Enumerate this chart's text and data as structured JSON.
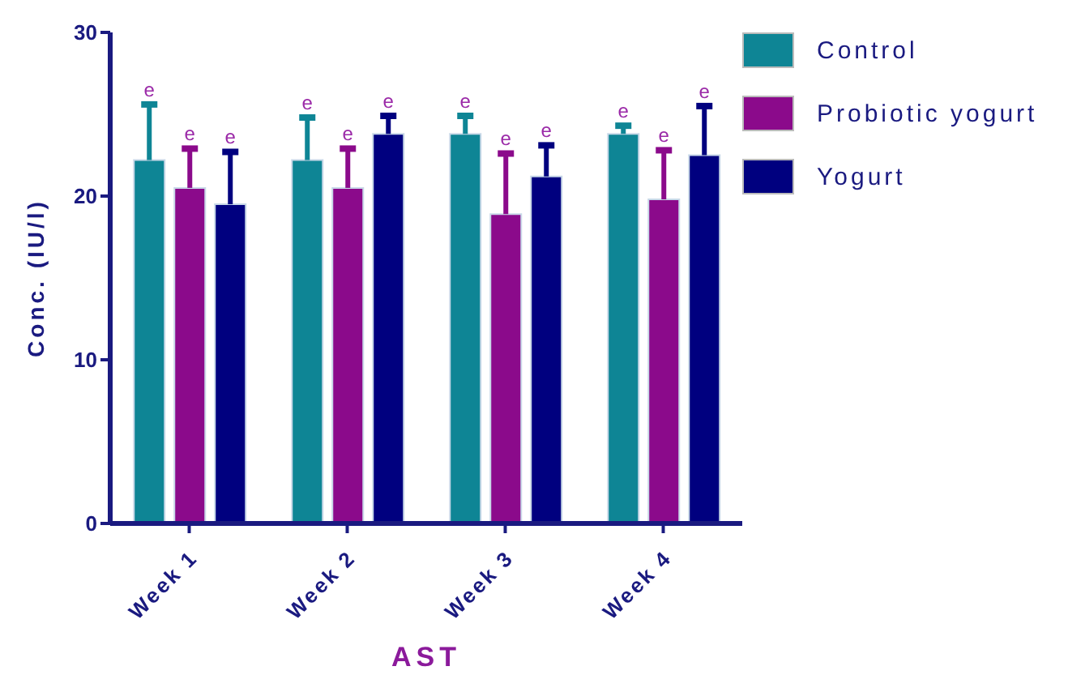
{
  "chart_data": {
    "type": "bar",
    "xlabel": "AST",
    "ylabel": "Conc. (IU/l)",
    "categories": [
      "Week 1",
      "Week 2",
      "Week 3",
      "Week 4"
    ],
    "series": [
      {
        "name": "Control",
        "color": "#0e8595",
        "values": [
          22.2,
          22.2,
          23.8,
          23.8
        ],
        "errors": [
          [
            22.2,
            25.6
          ],
          [
            22.2,
            24.8
          ],
          [
            23.8,
            24.9
          ],
          [
            23.8,
            24.3
          ]
        ]
      },
      {
        "name": "Probiotic yogurt",
        "color": "#8b0a8b",
        "values": [
          20.5,
          20.5,
          18.9,
          19.8
        ],
        "errors": [
          [
            20.5,
            22.9
          ],
          [
            20.5,
            22.9
          ],
          [
            18.9,
            22.6
          ],
          [
            19.8,
            22.8
          ]
        ]
      },
      {
        "name": "Yogurt",
        "color": "#00007f",
        "values": [
          19.5,
          23.8,
          21.2,
          22.5
        ],
        "errors": [
          [
            19.5,
            22.7
          ],
          [
            23.8,
            24.9
          ],
          [
            21.2,
            23.1
          ],
          [
            22.5,
            25.5
          ]
        ]
      }
    ],
    "annotations": [
      "e",
      "e",
      "e",
      "e",
      "e",
      "e",
      "e",
      "e",
      "e",
      "e",
      "e",
      "e"
    ],
    "ylim": [
      0,
      30
    ],
    "yticks": [
      0,
      10,
      20,
      30
    ],
    "grid": false,
    "legend": "top right"
  }
}
